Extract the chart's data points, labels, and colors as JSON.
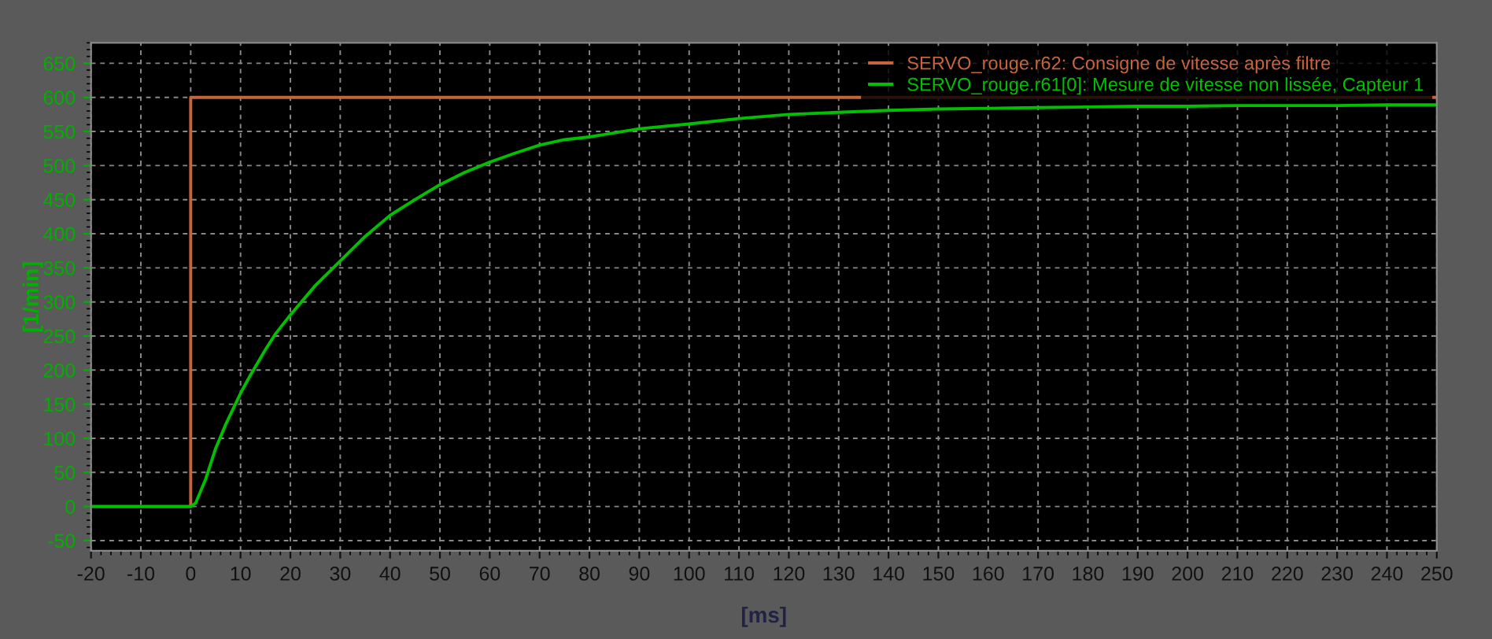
{
  "chart_data": {
    "type": "line",
    "xlabel": "[ms]",
    "ylabel": "[1/min]",
    "xlim": [
      -20,
      250
    ],
    "xticks": [
      -20,
      -10,
      0,
      10,
      20,
      30,
      40,
      50,
      60,
      70,
      80,
      90,
      100,
      110,
      120,
      130,
      140,
      150,
      160,
      170,
      180,
      190,
      200,
      210,
      220,
      230,
      240,
      250
    ],
    "ylim": [
      -65,
      680
    ],
    "yticks": [
      -50,
      0,
      50,
      100,
      150,
      200,
      250,
      300,
      350,
      400,
      450,
      500,
      550,
      600,
      650
    ],
    "grid": true,
    "legend": "top right",
    "line_style": "solid",
    "marker": "none",
    "series": [
      {
        "name": "SERVO_rouge.r62: Consigne de vitesse après filtre",
        "color": "#c8643c",
        "x": [
          -20,
          0,
          0,
          250
        ],
        "values": [
          0,
          0,
          600,
          600
        ]
      },
      {
        "name": "SERVO_rouge.r61[0]: Mesure de vitesse non lissée, Capteur 1",
        "color": "#00c000",
        "x": [
          -20,
          0,
          1,
          3,
          5,
          7,
          10,
          12,
          15,
          17,
          20,
          25,
          30,
          35,
          40,
          45,
          50,
          55,
          60,
          65,
          70,
          75,
          80,
          90,
          100,
          110,
          120,
          130,
          140,
          150,
          160,
          170,
          180,
          190,
          200,
          210,
          220,
          230,
          240,
          250
        ],
        "values": [
          0,
          0,
          5,
          40,
          85,
          120,
          166,
          193,
          230,
          253,
          281,
          324,
          360,
          396,
          427,
          450,
          472,
          490,
          505,
          518,
          530,
          538,
          542,
          554,
          561,
          569,
          575,
          578,
          581,
          583,
          584,
          585,
          586,
          587,
          587,
          588,
          588,
          588,
          589,
          589
        ]
      }
    ]
  }
}
